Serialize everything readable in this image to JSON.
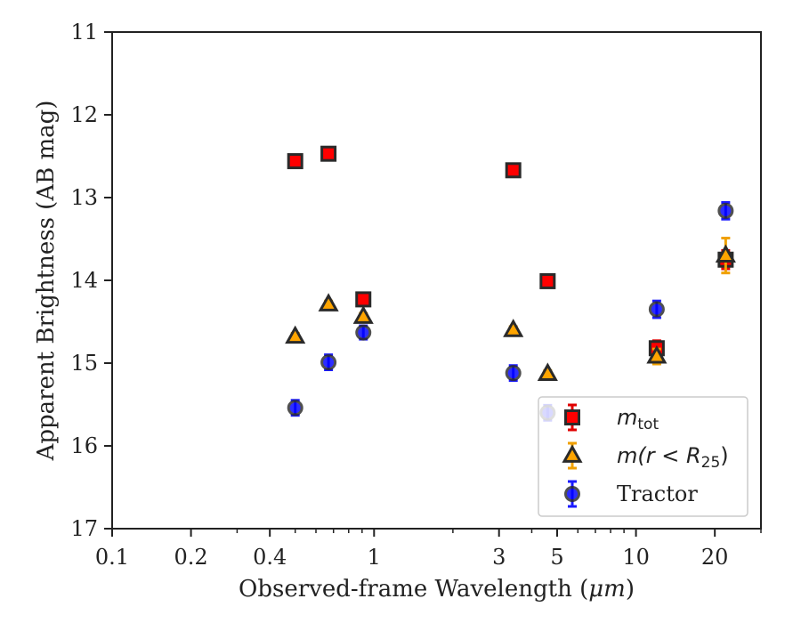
{
  "chart_data": {
    "type": "scatter",
    "xlabel": "Observed-frame Wavelength (",
    "xlabel_unit": "μm",
    "xlabel_close": ")",
    "ylabel": "Apparent Brightness (AB mag)",
    "x_scale": "log",
    "xlim": [
      0.1,
      30
    ],
    "ylim": [
      17,
      11
    ],
    "y_inverted": true,
    "x_ticks": [
      0.1,
      0.2,
      0.4,
      1,
      3,
      5,
      10,
      20
    ],
    "x_tick_labels": [
      "0.1",
      "0.2",
      "0.4",
      "1",
      "3",
      "5",
      "10",
      "20"
    ],
    "y_ticks": [
      11,
      12,
      13,
      14,
      15,
      16,
      17
    ],
    "y_tick_labels": [
      "11",
      "12",
      "13",
      "14",
      "15",
      "16",
      "17"
    ],
    "grid": false,
    "legend_position": "lower-right",
    "series": [
      {
        "key": "mtot",
        "name": "m",
        "name_sub": "tot",
        "name_tail": "",
        "marker": "square",
        "color": "#ff0000",
        "errcolor": "#e00000",
        "x": [
          0.5,
          0.67,
          0.91,
          3.4,
          4.6,
          12.0,
          22.0
        ],
        "y": [
          12.56,
          12.47,
          14.23,
          12.67,
          14.01,
          14.82,
          13.75
        ],
        "yerr": [
          0.06,
          0.06,
          0.06,
          0.06,
          0.05,
          0.08,
          0.1
        ]
      },
      {
        "key": "mr25",
        "name": "m(r < R",
        "name_sub": "25",
        "name_tail": ")",
        "marker": "triangle",
        "color": "#ffa500",
        "errcolor": "#f0a000",
        "x": [
          0.5,
          0.67,
          0.91,
          3.4,
          4.6,
          12.0,
          22.0
        ],
        "y": [
          14.68,
          14.29,
          14.44,
          14.6,
          15.13,
          14.92,
          13.7
        ],
        "yerr": [
          0.03,
          0.03,
          0.03,
          0.03,
          0.03,
          0.08,
          0.2
        ]
      },
      {
        "key": "tractor",
        "name": "Tractor",
        "name_sub": "",
        "name_tail": "",
        "marker": "circle",
        "color": "#0000ff",
        "errcolor": "#1a1aff",
        "x": [
          0.5,
          0.67,
          0.91,
          3.4,
          4.6,
          12.0,
          22.0
        ],
        "y": [
          15.54,
          14.99,
          14.63,
          15.12,
          15.6,
          14.35,
          13.16
        ],
        "yerr": [
          0.08,
          0.08,
          0.07,
          0.08,
          0.08,
          0.09,
          0.09
        ]
      }
    ]
  }
}
